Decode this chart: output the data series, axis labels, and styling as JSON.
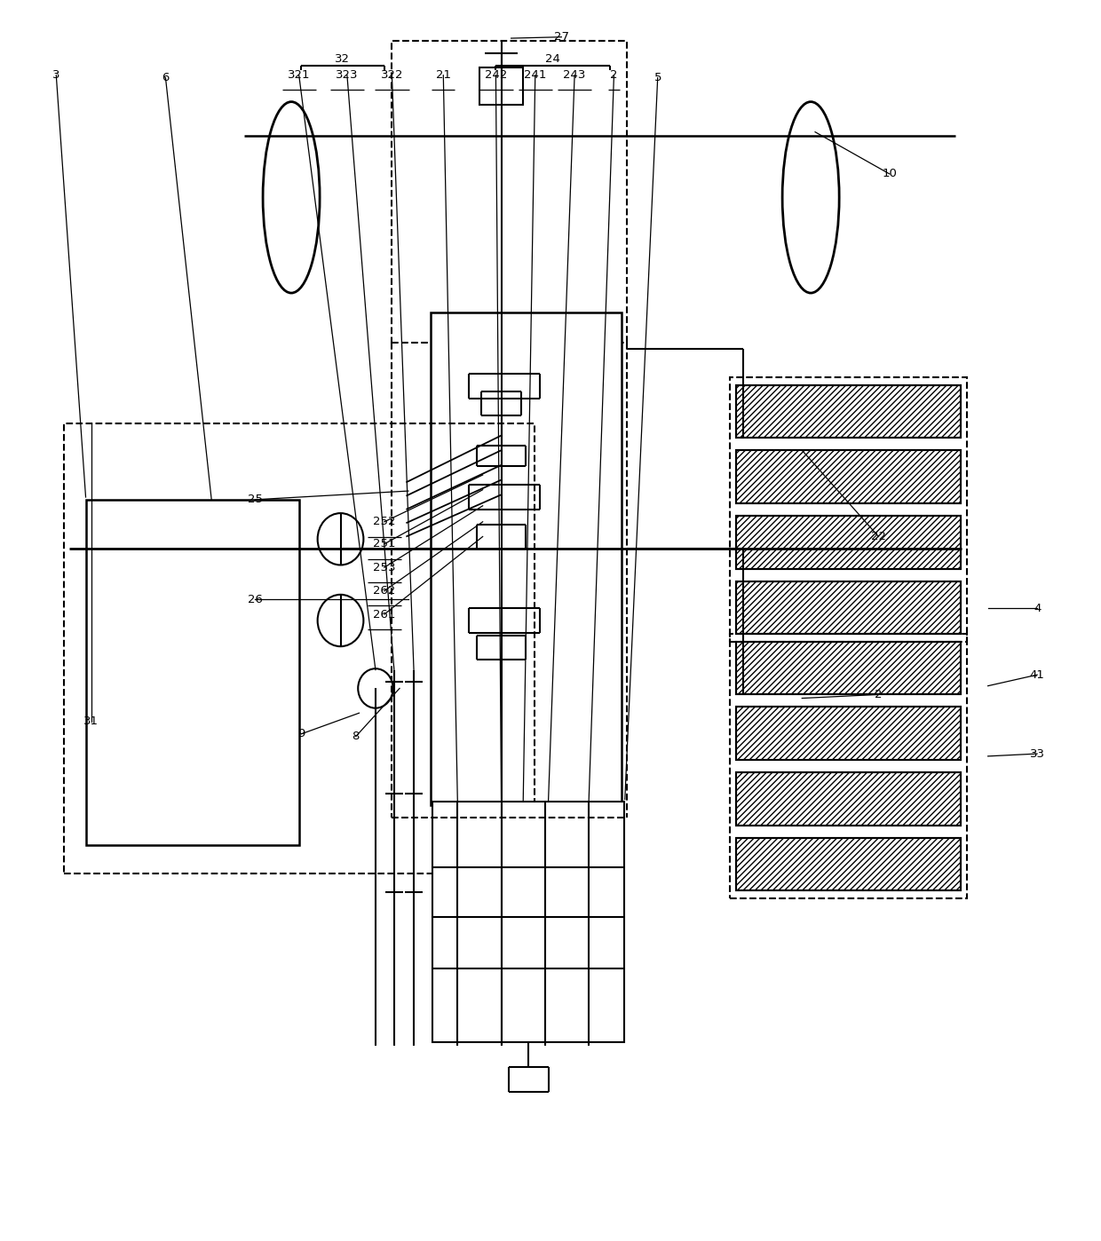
{
  "bg_color": "#ffffff",
  "line_color": "#000000",
  "fig_width": 12.4,
  "fig_height": 13.98
}
